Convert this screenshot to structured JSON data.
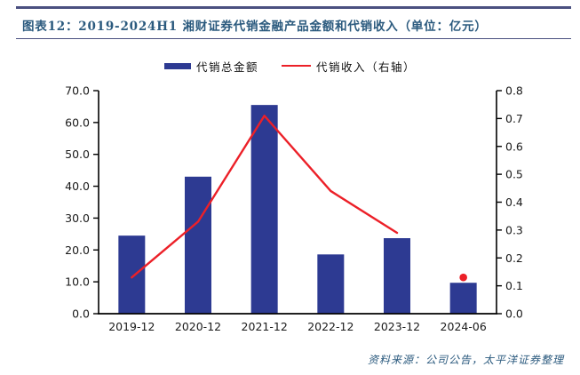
{
  "header": {
    "title": "图表12：2019-2024H1 湘财证券代销金融产品金额和代销收入（单位：亿元）"
  },
  "legend": [
    {
      "label": "代销总金额",
      "swatch": "bar-swatch",
      "color": "#2d3a92"
    },
    {
      "label": "代销收入（右轴）",
      "swatch": "line-swatch",
      "color": "#ec2028"
    }
  ],
  "chart_data": {
    "type": "bar",
    "title": "2019-2024H1 湘财证券代销金融产品金额和代销收入（单位：亿元）",
    "categories": [
      "2019-12",
      "2020-12",
      "2021-12",
      "2022-12",
      "2023-12",
      "2024-06"
    ],
    "series": [
      {
        "name": "代销总金额",
        "type": "bar",
        "axis": "left",
        "color": "#2d3a92",
        "values": [
          24.5,
          43.0,
          65.5,
          18.6,
          23.7,
          9.7
        ]
      },
      {
        "name": "代销收入（右轴）",
        "type": "line",
        "axis": "right",
        "color": "#ec2028",
        "values": [
          0.13,
          0.33,
          0.71,
          0.44,
          0.29,
          0.13
        ],
        "line_segment_end_index": 4,
        "isolated_marker_index": 5
      }
    ],
    "left_axis": {
      "min": 0,
      "max": 70,
      "step": 10,
      "tick_labels": [
        "0.0",
        "10.0",
        "20.0",
        "30.0",
        "40.0",
        "50.0",
        "60.0",
        "70.0"
      ]
    },
    "right_axis": {
      "min": 0,
      "max": 0.8,
      "step": 0.1,
      "tick_labels": [
        "0.0",
        "0.1",
        "0.2",
        "0.3",
        "0.4",
        "0.5",
        "0.6",
        "0.7",
        "0.8"
      ]
    },
    "grid": false,
    "legend_position": "top"
  },
  "footer": {
    "source": "资料来源：公司公告，太平洋证券整理"
  }
}
